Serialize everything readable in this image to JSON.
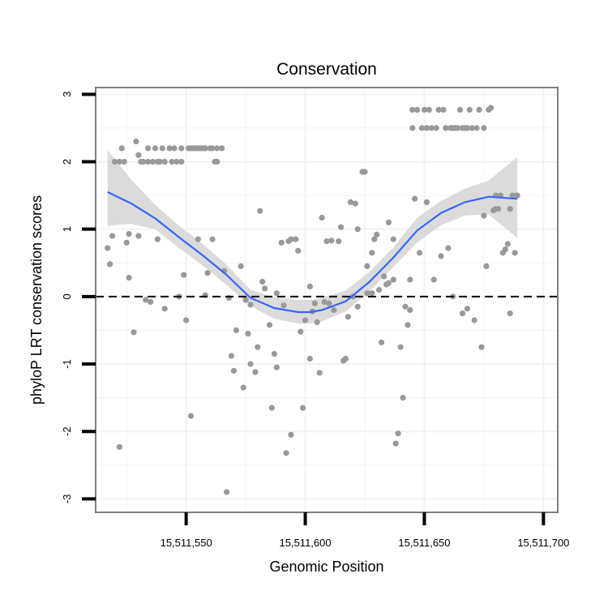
{
  "chart_data": {
    "type": "scatter",
    "title": "Conservation",
    "xlabel": "Genomic Position",
    "ylabel": "phyloP LRT conservation scores",
    "xlim": [
      15511512,
      15511706
    ],
    "ylim": [
      -3.2,
      3.1
    ],
    "x_ticks": [
      {
        "value": 15511550,
        "label": "15,511,550"
      },
      {
        "value": 15511600,
        "label": "15,511,600"
      },
      {
        "value": 15511650,
        "label": "15,511,650"
      },
      {
        "value": 15511700,
        "label": "15,511,700"
      }
    ],
    "y_ticks": [
      {
        "value": 3,
        "label": "3"
      },
      {
        "value": 2,
        "label": "2"
      },
      {
        "value": 1,
        "label": "1"
      },
      {
        "value": 0,
        "label": "0"
      },
      {
        "value": -1,
        "label": "-1"
      },
      {
        "value": -2,
        "label": "-2"
      },
      {
        "value": -3,
        "label": "-3"
      }
    ],
    "reference_line": {
      "y": 0,
      "style": "dashed"
    },
    "grid": true,
    "colors": {
      "points": "#999999",
      "smooth": "#3366ff",
      "band": "#d9d9d9",
      "panel": "#ffffff",
      "grid": "#f2f2f2",
      "border": "#7f7f7f"
    },
    "series": [
      {
        "name": "scores",
        "kind": "points",
        "points": [
          [
            15511517,
            0.72
          ],
          [
            15511518,
            0.48
          ],
          [
            15511519,
            0.9
          ],
          [
            15511520,
            2.0
          ],
          [
            15511522,
            -2.23
          ],
          [
            15511522,
            2.0
          ],
          [
            15511523,
            2.2
          ],
          [
            15511524,
            2.0
          ],
          [
            15511525,
            0.8
          ],
          [
            15511526,
            0.28
          ],
          [
            15511526,
            0.93
          ],
          [
            15511528,
            -0.53
          ],
          [
            15511529,
            2.3
          ],
          [
            15511530,
            2.1
          ],
          [
            15511530,
            0.9
          ],
          [
            15511531,
            2.0
          ],
          [
            15511532,
            2.0
          ],
          [
            15511533,
            -0.05
          ],
          [
            15511534,
            2.2
          ],
          [
            15511534,
            2.0
          ],
          [
            15511535,
            -0.08
          ],
          [
            15511536,
            2.0
          ],
          [
            15511537,
            2.2
          ],
          [
            15511538,
            2.0
          ],
          [
            15511538,
            0.85
          ],
          [
            15511539,
            2.0
          ],
          [
            15511540,
            2.2
          ],
          [
            15511541,
            2.0
          ],
          [
            15511541,
            -0.18
          ],
          [
            15511543,
            2.2
          ],
          [
            15511544,
            2.0
          ],
          [
            15511545,
            2.2
          ],
          [
            15511546,
            2.0
          ],
          [
            15511547,
            0.0
          ],
          [
            15511548,
            2.2
          ],
          [
            15511548,
            2.0
          ],
          [
            15511549,
            0.32
          ],
          [
            15511550,
            -0.35
          ],
          [
            15511551,
            2.2
          ],
          [
            15511552,
            2.2
          ],
          [
            15511552,
            -1.77
          ],
          [
            15511553,
            2.2
          ],
          [
            15511554,
            2.2
          ],
          [
            15511555,
            2.2
          ],
          [
            15511555,
            0.85
          ],
          [
            15511556,
            2.2
          ],
          [
            15511557,
            2.2
          ],
          [
            15511558,
            2.2
          ],
          [
            15511558,
            0.02
          ],
          [
            15511559,
            0.35
          ],
          [
            15511560,
            2.2
          ],
          [
            15511561,
            2.2
          ],
          [
            15511561,
            0.85
          ],
          [
            15511562,
            2.0
          ],
          [
            15511563,
            2.2
          ],
          [
            15511563,
            2.0
          ],
          [
            15511565,
            2.2
          ],
          [
            15511566,
            0.38
          ],
          [
            15511567,
            -2.9
          ],
          [
            15511568,
            -0.02
          ],
          [
            15511569,
            -0.88
          ],
          [
            15511570,
            -1.1
          ],
          [
            15511571,
            -0.5
          ],
          [
            15511573,
            0.45
          ],
          [
            15511574,
            -1.35
          ],
          [
            15511575,
            -0.05
          ],
          [
            15511576,
            -0.55
          ],
          [
            15511577,
            -0.12
          ],
          [
            15511577,
            -1.0
          ],
          [
            15511579,
            -1.12
          ],
          [
            15511580,
            -0.75
          ],
          [
            15511581,
            1.27
          ],
          [
            15511582,
            0.22
          ],
          [
            15511583,
            0.12
          ],
          [
            15511585,
            -0.42
          ],
          [
            15511586,
            -1.65
          ],
          [
            15511587,
            -0.85
          ],
          [
            15511588,
            -1.05
          ],
          [
            15511588,
            0.05
          ],
          [
            15511590,
            0.8
          ],
          [
            15511591,
            -0.13
          ],
          [
            15511592,
            -2.32
          ],
          [
            15511593,
            0.82
          ],
          [
            15511594,
            -2.05
          ],
          [
            15511594,
            0.85
          ],
          [
            15511596,
            0.85
          ],
          [
            15511597,
            0.68
          ],
          [
            15511598,
            -0.52
          ],
          [
            15511599,
            -1.65
          ],
          [
            15511600,
            -0.35
          ],
          [
            15511602,
            -0.92
          ],
          [
            15511602,
            0.15
          ],
          [
            15511603,
            -0.22
          ],
          [
            15511604,
            -0.1
          ],
          [
            15511605,
            -0.38
          ],
          [
            15511606,
            -1.13
          ],
          [
            15511607,
            1.17
          ],
          [
            15511608,
            -0.08
          ],
          [
            15511609,
            0.82
          ],
          [
            15511610,
            -0.1
          ],
          [
            15511611,
            0.83
          ],
          [
            15511612,
            -0.2
          ],
          [
            15511614,
            0.82
          ],
          [
            15511615,
            1.03
          ],
          [
            15511616,
            -0.95
          ],
          [
            15511617,
            -0.92
          ],
          [
            15511618,
            -0.3
          ],
          [
            15511619,
            1.4
          ],
          [
            15511620,
            0.0
          ],
          [
            15511621,
            1.38
          ],
          [
            15511622,
            -0.15
          ],
          [
            15511622,
            1.0
          ],
          [
            15511624,
            1.85
          ],
          [
            15511625,
            1.85
          ],
          [
            15511626,
            0.45
          ],
          [
            15511626,
            0.05
          ],
          [
            15511628,
            0.65
          ],
          [
            15511628,
            0.05
          ],
          [
            15511629,
            0.85
          ],
          [
            15511630,
            0.92
          ],
          [
            15511631,
            0.1
          ],
          [
            15511632,
            -0.68
          ],
          [
            15511633,
            0.3
          ],
          [
            15511634,
            0.18
          ],
          [
            15511635,
            1.1
          ],
          [
            15511635,
            0.2
          ],
          [
            15511637,
            0.25
          ],
          [
            15511637,
            0.85
          ],
          [
            15511638,
            -2.18
          ],
          [
            15511639,
            -2.03
          ],
          [
            15511640,
            -0.75
          ],
          [
            15511641,
            -1.5
          ],
          [
            15511642,
            -0.15
          ],
          [
            15511643,
            -0.42
          ],
          [
            15511644,
            0.25
          ],
          [
            15511644,
            -0.2
          ],
          [
            15511645,
            2.5
          ],
          [
            15511645,
            2.77
          ],
          [
            15511646,
            1.45
          ],
          [
            15511647,
            2.77
          ],
          [
            15511648,
            0.65
          ],
          [
            15511649,
            2.5
          ],
          [
            15511650,
            2.77
          ],
          [
            15511651,
            2.5
          ],
          [
            15511651,
            1.4
          ],
          [
            15511652,
            2.77
          ],
          [
            15511653,
            2.5
          ],
          [
            15511654,
            0.25
          ],
          [
            15511655,
            2.5
          ],
          [
            15511656,
            2.77
          ],
          [
            15511657,
            0.6
          ],
          [
            15511658,
            2.77
          ],
          [
            15511659,
            2.5
          ],
          [
            15511660,
            0.72
          ],
          [
            15511661,
            2.5
          ],
          [
            15511662,
            2.5
          ],
          [
            15511662,
            0.0
          ],
          [
            15511663,
            2.5
          ],
          [
            15511664,
            2.5
          ],
          [
            15511665,
            2.77
          ],
          [
            15511666,
            2.5
          ],
          [
            15511666,
            -0.25
          ],
          [
            15511667,
            2.5
          ],
          [
            15511668,
            2.5
          ],
          [
            15511668,
            -0.18
          ],
          [
            15511669,
            2.77
          ],
          [
            15511670,
            2.5
          ],
          [
            15511671,
            -0.35
          ],
          [
            15511672,
            2.5
          ],
          [
            15511673,
            2.77
          ],
          [
            15511674,
            -0.75
          ],
          [
            15511675,
            2.5
          ],
          [
            15511675,
            1.2
          ],
          [
            15511676,
            0.45
          ],
          [
            15511677,
            2.77
          ],
          [
            15511678,
            2.8
          ],
          [
            15511679,
            1.28
          ],
          [
            15511680,
            1.5
          ],
          [
            15511680,
            1.3
          ],
          [
            15511681,
            1.3
          ],
          [
            15511682,
            1.5
          ],
          [
            15511683,
            0.65
          ],
          [
            15511684,
            0.7
          ],
          [
            15511685,
            0.78
          ],
          [
            15511686,
            -0.25
          ],
          [
            15511686,
            1.3
          ],
          [
            15511687,
            1.5
          ],
          [
            15511688,
            0.65
          ],
          [
            15511689,
            1.5
          ]
        ]
      },
      {
        "name": "loess fit",
        "kind": "smooth",
        "x": [
          15511517,
          15511527,
          15511537,
          15511547,
          15511557,
          15511567,
          15511577,
          15511587,
          15511597,
          15511602,
          15511607,
          15511617,
          15511627,
          15511637,
          15511647,
          15511657,
          15511667,
          15511677,
          15511689
        ],
        "y": [
          1.55,
          1.38,
          1.16,
          0.88,
          0.61,
          0.32,
          -0.02,
          -0.17,
          -0.23,
          -0.23,
          -0.2,
          -0.07,
          0.22,
          0.58,
          0.98,
          1.24,
          1.4,
          1.48,
          1.45
        ],
        "lower": [
          1.05,
          1.08,
          1.0,
          0.72,
          0.46,
          0.17,
          -0.14,
          -0.33,
          -0.4,
          -0.4,
          -0.37,
          -0.22,
          0.08,
          0.44,
          0.8,
          1.06,
          1.2,
          1.22,
          0.87
        ],
        "upper": [
          2.17,
          1.73,
          1.36,
          1.05,
          0.78,
          0.47,
          0.1,
          -0.01,
          -0.05,
          -0.05,
          -0.02,
          0.09,
          0.37,
          0.73,
          1.17,
          1.42,
          1.6,
          1.72,
          2.07
        ]
      }
    ]
  }
}
